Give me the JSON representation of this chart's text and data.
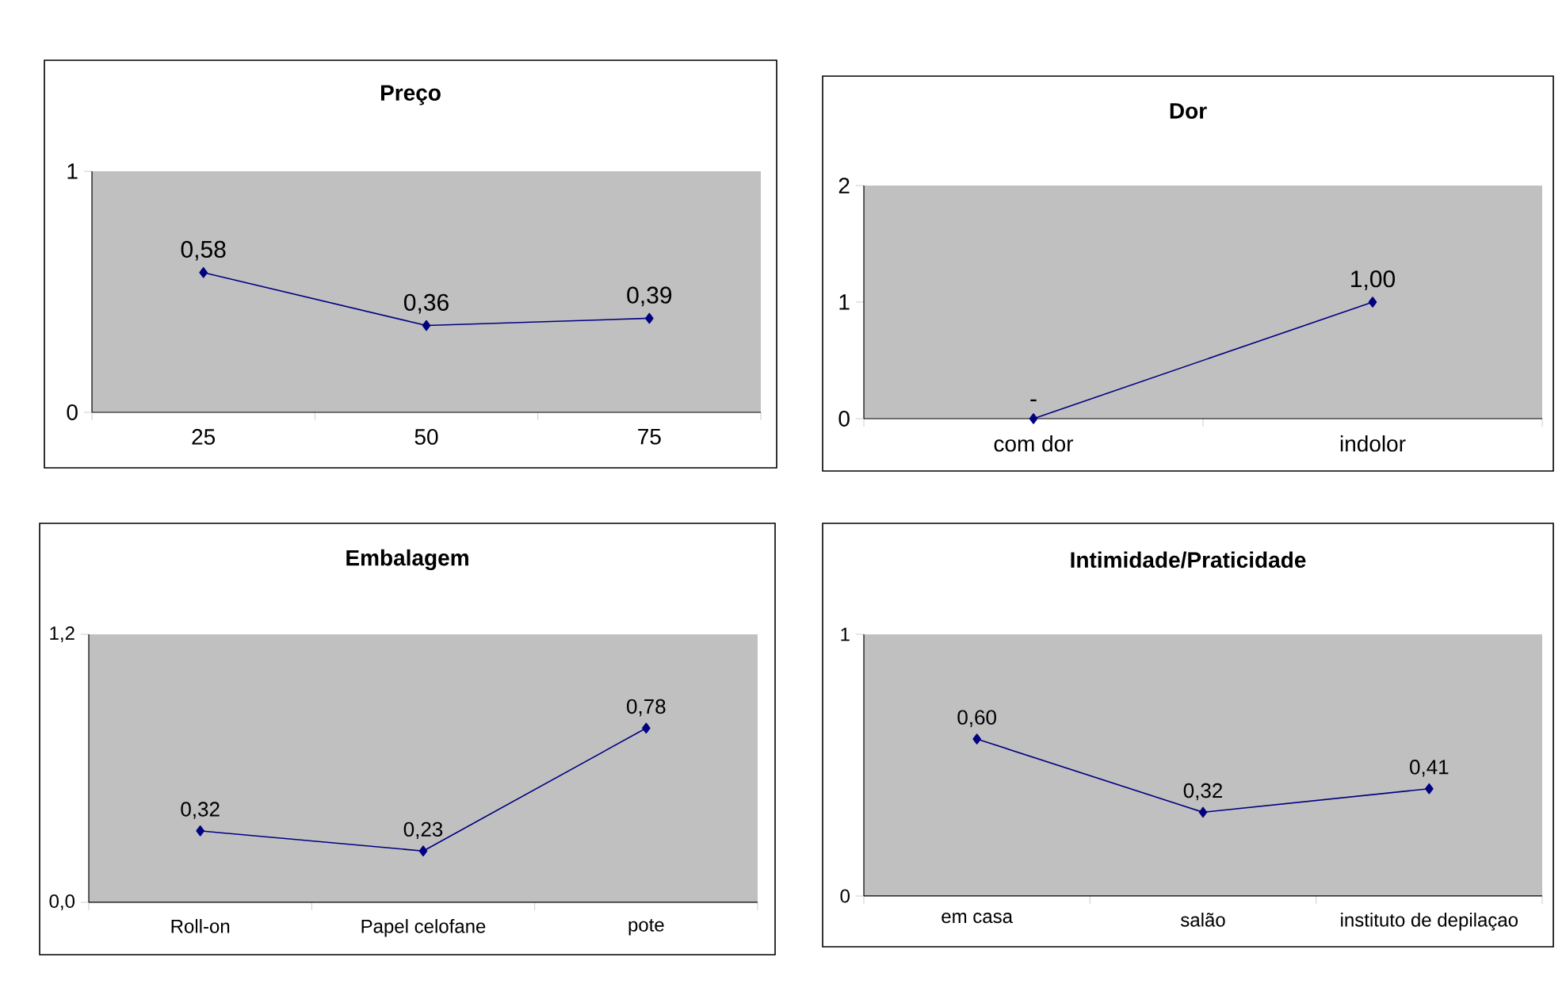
{
  "chart_data": [
    {
      "type": "line",
      "title": "Preço",
      "categories": [
        "25",
        "50",
        "75"
      ],
      "values": [
        0.58,
        0.36,
        0.39
      ],
      "value_labels": [
        "0,58",
        "0,36",
        "0,39"
      ],
      "color": "#000080",
      "marker": "diamond",
      "ylim": [
        0,
        1
      ],
      "yticks": [
        0,
        1
      ]
    },
    {
      "type": "line",
      "title": "Dor",
      "categories": [
        "com dor",
        "indolor"
      ],
      "values": [
        0,
        1
      ],
      "value_labels": [
        "-",
        "1,00"
      ],
      "color": "#000080",
      "marker": "diamond",
      "ylim": [
        0,
        2
      ],
      "yticks": [
        0,
        1,
        2
      ]
    },
    {
      "type": "line",
      "title": "Embalagem",
      "categories": [
        "Roll-on",
        "Papel celofane",
        "pote"
      ],
      "values": [
        0.32,
        0.23,
        0.78
      ],
      "value_labels": [
        "0,32",
        "0,23",
        "0,78"
      ],
      "color": "#000080",
      "marker": "diamond",
      "ylim": [
        0,
        1.2
      ],
      "yticks": [
        {
          "value": 0,
          "label": "0,0"
        },
        {
          "value": 1.2,
          "label": "1,2"
        }
      ]
    },
    {
      "type": "line",
      "title": "Intimidade/Praticidade",
      "categories": [
        "em casa",
        "salão",
        "instituto de depilaçao"
      ],
      "values": [
        0.6,
        0.32,
        0.41
      ],
      "value_labels": [
        "0,60",
        "0,32",
        "0,41"
      ],
      "color": "#000080",
      "marker": "diamond",
      "ylim": [
        0,
        1
      ],
      "yticks": [
        0,
        1
      ]
    }
  ]
}
